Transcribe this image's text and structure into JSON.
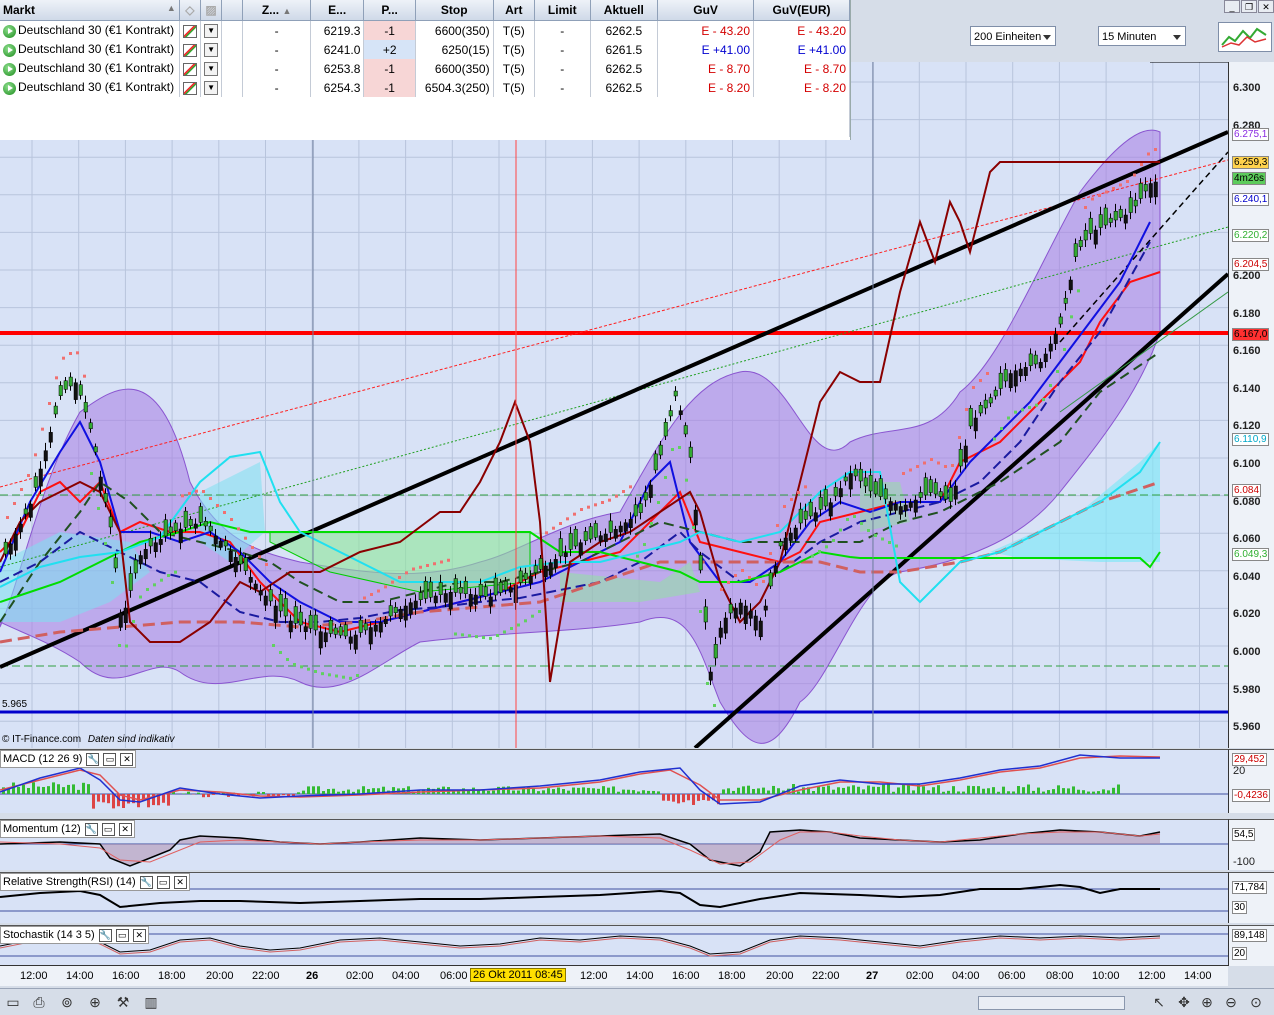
{
  "positions": {
    "headers": [
      "Markt",
      "",
      "",
      "",
      "Z...",
      "E...",
      "P...",
      "Stop",
      "Art",
      "Limit",
      "Aktuell",
      "GuV",
      "GuV(EUR)"
    ],
    "rows": [
      {
        "markt": "Deutschland 30 (€1 Kontrakt)",
        "z": "-",
        "e": "6219.3",
        "p": "-1",
        "stop": "6600(350)",
        "art": "T(5)",
        "limit": "-",
        "aktuell": "6262.5",
        "guv": "E - 43.20",
        "guv_eur": "E - 43.20",
        "sign": "neg"
      },
      {
        "markt": "Deutschland 30 (€1 Kontrakt)",
        "z": "-",
        "e": "6241.0",
        "p": "+2",
        "stop": "6250(15)",
        "art": "T(5)",
        "limit": "-",
        "aktuell": "6261.5",
        "guv": "E +41.00",
        "guv_eur": "E +41.00",
        "sign": "pos"
      },
      {
        "markt": "Deutschland 30 (€1 Kontrakt)",
        "z": "-",
        "e": "6253.8",
        "p": "-1",
        "stop": "6600(350)",
        "art": "T(5)",
        "limit": "-",
        "aktuell": "6262.5",
        "guv": "E - 8.70",
        "guv_eur": "E - 8.70",
        "sign": "neg"
      },
      {
        "markt": "Deutschland 30 (€1 Kontrakt)",
        "z": "-",
        "e": "6254.3",
        "p": "-1",
        "stop": "6504.3(250)",
        "art": "T(5)",
        "limit": "-",
        "aktuell": "6262.5",
        "guv": "E - 8.20",
        "guv_eur": "E - 8.20",
        "sign": "neg"
      }
    ]
  },
  "controls": {
    "units": "200 Einheiten",
    "interval": "15 Minuten"
  },
  "price_axis": {
    "ticks": [
      "6.300",
      "6.280",
      "6.260",
      "6.240",
      "6.220",
      "6.200",
      "6.180",
      "6.160",
      "6.140",
      "6.120",
      "6.100",
      "6.080",
      "6.060",
      "6.040",
      "6.020",
      "6.000",
      "5.980",
      "5.960"
    ],
    "labels": [
      {
        "text": "6.275,1",
        "color": "#8a2be2"
      },
      {
        "text": "6.259,3",
        "color": "#000000",
        "bg": "#ffd24d"
      },
      {
        "text": "4m26s",
        "color": "#000000",
        "bg": "#5ccc5c"
      },
      {
        "text": "6.240,1",
        "color": "#0000cc"
      },
      {
        "text": "6.220,2",
        "color": "#30b030"
      },
      {
        "text": "6.204,5",
        "color": "#cc0000"
      },
      {
        "text": "6.167,0",
        "color": "#000000",
        "bg": "#ff3030"
      },
      {
        "text": "6.110,9",
        "color": "#00a8c8"
      },
      {
        "text": "6.084",
        "color": "#cc0000"
      },
      {
        "text": "6.049,3",
        "color": "#30b030"
      }
    ]
  },
  "chart_labels": {
    "support_value": "5.965",
    "credit": "© IT-Finance.com",
    "credit_note": "Daten sind indikativ"
  },
  "indicators": {
    "macd": {
      "title": "MACD (12 26 9)",
      "axis": [
        "29,452",
        "20",
        "-0,4236"
      ]
    },
    "momentum": {
      "title": "Momentum (12)",
      "axis": [
        "54,5",
        "-100"
      ]
    },
    "rsi": {
      "title": "Relative Strength(RSI) (14)",
      "axis": [
        "71,784",
        "30"
      ]
    },
    "stoch": {
      "title": "Stochastik (14 3 5)",
      "axis": [
        "89,148",
        "20"
      ]
    }
  },
  "time_axis": [
    "12:00",
    "14:00",
    "16:00",
    "18:00",
    "20:00",
    "22:00",
    "26",
    "02:00",
    "04:00",
    "06:00",
    "26 Okt 2011 08:45",
    "12:00",
    "14:00",
    "16:00",
    "18:00",
    "20:00",
    "22:00",
    "27",
    "02:00",
    "04:00",
    "06:00",
    "08:00",
    "10:00",
    "12:00",
    "14:00"
  ],
  "toolbar": {
    "icons": [
      "layout-icon",
      "print-icon",
      "binoculars-icon",
      "crosshair-icon",
      "toolbox-icon",
      "candle-add-icon",
      "cursor-icon",
      "pan-icon",
      "zoom-in-icon",
      "zoom-out-icon",
      "zoom-reset-icon"
    ]
  },
  "colors": {
    "chart_bg": "#d8e2f6",
    "resistance": "#ff0000",
    "support": "#0000cc",
    "trend": "#000000",
    "bollinger": "#a070e0"
  }
}
